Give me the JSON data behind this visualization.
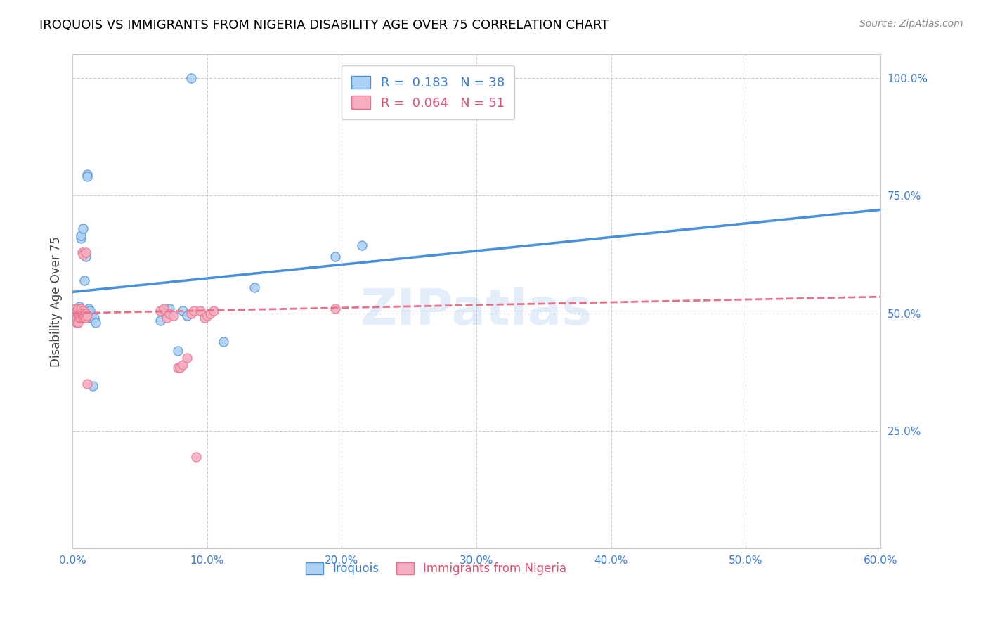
{
  "title": "IROQUOIS VS IMMIGRANTS FROM NIGERIA DISABILITY AGE OVER 75 CORRELATION CHART",
  "source": "Source: ZipAtlas.com",
  "ylabel_label": "Disability Age Over 75",
  "xmin": 0.0,
  "xmax": 0.6,
  "ymin": 0.0,
  "ymax": 1.05,
  "xticks": [
    0.0,
    0.1,
    0.2,
    0.3,
    0.4,
    0.5,
    0.6
  ],
  "yticks": [
    0.25,
    0.5,
    0.75,
    1.0
  ],
  "ytick_labels": [
    "25.0%",
    "50.0%",
    "75.0%",
    "100.0%"
  ],
  "xtick_labels": [
    "0.0%",
    "10.0%",
    "20.0%",
    "30.0%",
    "40.0%",
    "50.0%",
    "60.0%"
  ],
  "legend_r1": "R =  0.183",
  "legend_n1": "N = 38",
  "legend_r2": "R =  0.064",
  "legend_n2": "N = 51",
  "color_iroquois": "#add0f5",
  "color_nigeria": "#f5adc0",
  "color_iroquois_line": "#4a90d9",
  "color_nigeria_line": "#e8708a",
  "watermark": "ZIPatlas",
  "iroquois_x": [
    0.001,
    0.003,
    0.004,
    0.004,
    0.005,
    0.006,
    0.006,
    0.006,
    0.007,
    0.007,
    0.007,
    0.008,
    0.008,
    0.009,
    0.009,
    0.01,
    0.01,
    0.011,
    0.011,
    0.012,
    0.012,
    0.013,
    0.013,
    0.014,
    0.015,
    0.016,
    0.017,
    0.065,
    0.068,
    0.072,
    0.078,
    0.082,
    0.085,
    0.088,
    0.112,
    0.135,
    0.195,
    0.215
  ],
  "iroquois_y": [
    0.495,
    0.5,
    0.49,
    0.51,
    0.515,
    0.66,
    0.665,
    0.49,
    0.495,
    0.505,
    0.5,
    0.49,
    0.68,
    0.5,
    0.57,
    0.62,
    0.49,
    0.795,
    0.79,
    0.49,
    0.51,
    0.505,
    0.49,
    0.49,
    0.345,
    0.49,
    0.48,
    0.485,
    0.505,
    0.51,
    0.42,
    0.505,
    0.495,
    1.0,
    0.44,
    0.555,
    0.62,
    0.645
  ],
  "nigeria_x": [
    0.001,
    0.002,
    0.002,
    0.003,
    0.003,
    0.003,
    0.003,
    0.004,
    0.004,
    0.004,
    0.004,
    0.005,
    0.005,
    0.005,
    0.006,
    0.006,
    0.006,
    0.006,
    0.007,
    0.007,
    0.008,
    0.008,
    0.008,
    0.008,
    0.008,
    0.009,
    0.009,
    0.009,
    0.01,
    0.01,
    0.01,
    0.011,
    0.011,
    0.065,
    0.068,
    0.07,
    0.072,
    0.075,
    0.078,
    0.08,
    0.082,
    0.085,
    0.088,
    0.09,
    0.092,
    0.095,
    0.098,
    0.1,
    0.102,
    0.105,
    0.195
  ],
  "nigeria_y": [
    0.5,
    0.5,
    0.51,
    0.48,
    0.49,
    0.505,
    0.49,
    0.48,
    0.5,
    0.505,
    0.51,
    0.49,
    0.5,
    0.495,
    0.495,
    0.5,
    0.51,
    0.49,
    0.495,
    0.63,
    0.625,
    0.505,
    0.5,
    0.495,
    0.49,
    0.495,
    0.49,
    0.495,
    0.5,
    0.63,
    0.49,
    0.495,
    0.35,
    0.505,
    0.51,
    0.49,
    0.5,
    0.495,
    0.385,
    0.385,
    0.39,
    0.405,
    0.5,
    0.505,
    0.195,
    0.505,
    0.49,
    0.495,
    0.5,
    0.505,
    0.51
  ],
  "iroquois_line_x": [
    0.0,
    0.6
  ],
  "iroquois_line_y": [
    0.545,
    0.72
  ],
  "nigeria_line_x": [
    0.0,
    0.6
  ],
  "nigeria_line_y": [
    0.5,
    0.535
  ]
}
